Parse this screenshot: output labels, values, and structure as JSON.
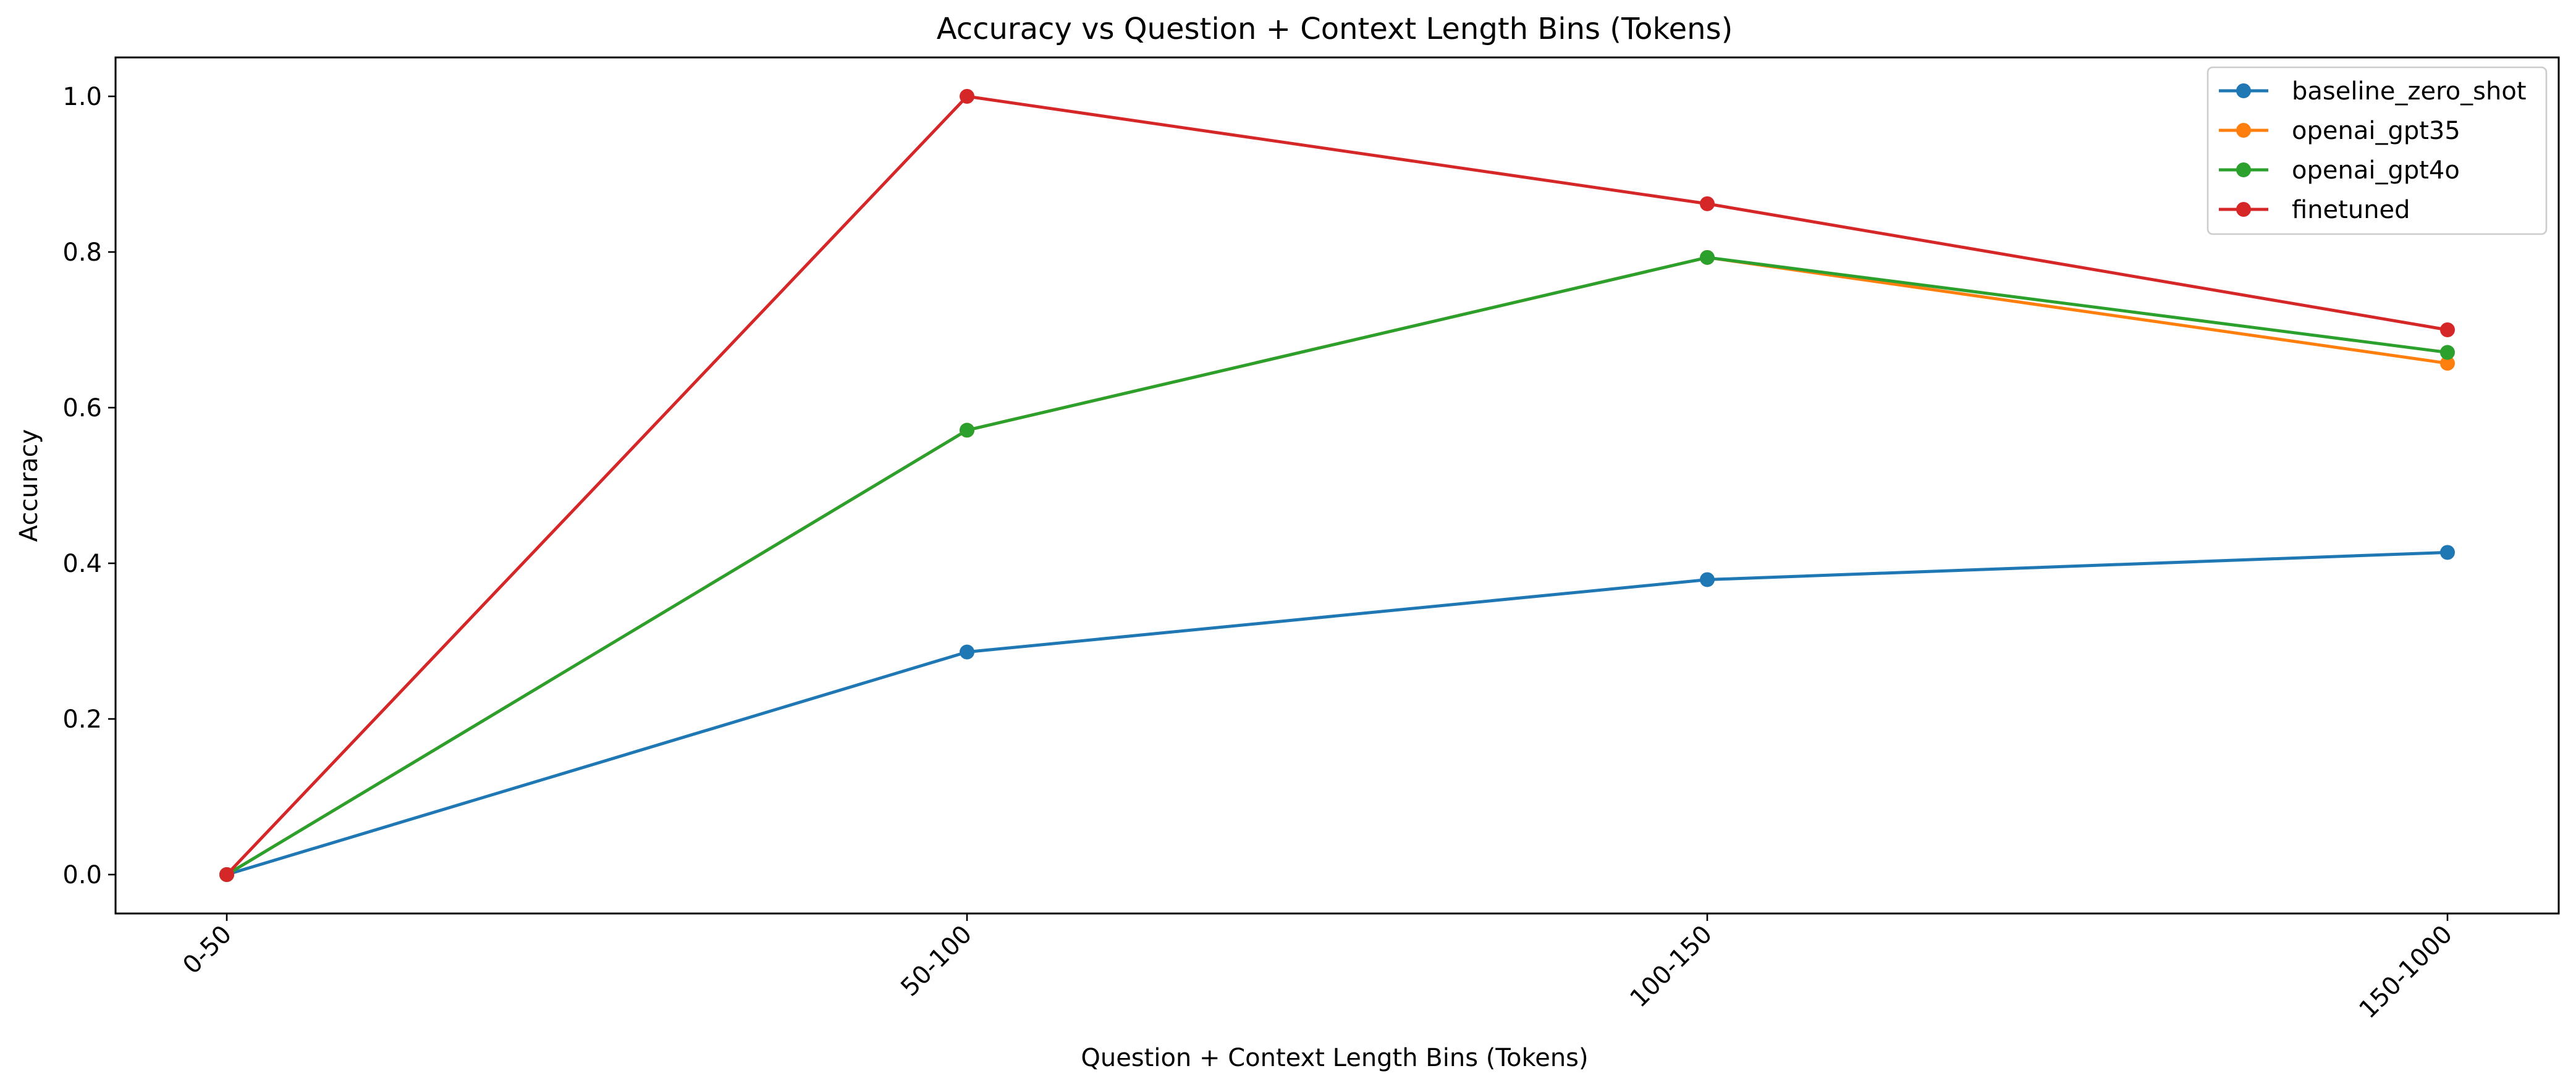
{
  "chart_data": {
    "type": "line",
    "title": "Accuracy vs Question + Context Length Bins (Tokens)",
    "xlabel": "Question + Context Length Bins (Tokens)",
    "ylabel": "Accuracy",
    "categories": [
      "0-50",
      "50-100",
      "100-150",
      "150-1000"
    ],
    "ylim": [
      -0.05,
      1.05
    ],
    "yticks": [
      0.0,
      0.2,
      0.4,
      0.6,
      0.8,
      1.0
    ],
    "ytick_labels": [
      "0.0",
      "0.2",
      "0.4",
      "0.6",
      "0.8",
      "1.0"
    ],
    "grid": false,
    "legend_position": "top-right",
    "series": [
      {
        "name": "baseline_zero_shot",
        "color": "#1f77b4",
        "values": [
          0.0,
          0.286,
          0.379,
          0.414
        ]
      },
      {
        "name": "openai_gpt35",
        "color": "#ff7f0e",
        "values": [
          0.0,
          0.571,
          0.793,
          0.657
        ]
      },
      {
        "name": "openai_gpt4o",
        "color": "#2ca02c",
        "values": [
          0.0,
          0.571,
          0.793,
          0.671
        ]
      },
      {
        "name": "finetuned",
        "color": "#d62728",
        "values": [
          0.0,
          1.0,
          0.862,
          0.7
        ]
      }
    ]
  }
}
